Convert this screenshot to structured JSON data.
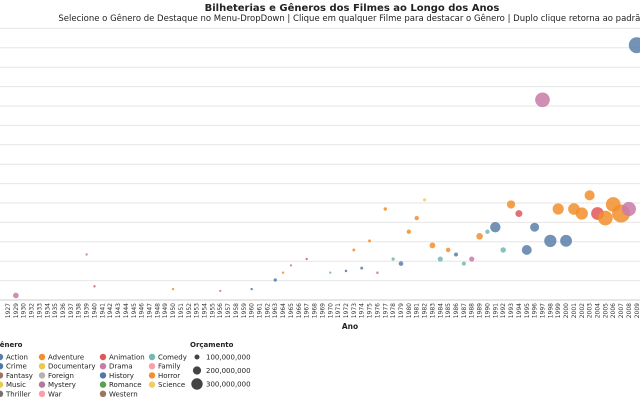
{
  "chart_data": {
    "type": "scatter",
    "title": "Bilheterias e Gêneros dos Filmes ao Longo dos Anos",
    "subtitle": "Selecione o Gênero de Destaque no Menu-DropDown | Clique em qualquer Filme para destacar o Gênero | Duplo clique retorna ao padrão",
    "xlabel": "Ano",
    "ylabel": "",
    "x_categories": [
      "1927",
      "1929",
      "1930",
      "1932",
      "1933",
      "1934",
      "1935",
      "1936",
      "1937",
      "1938",
      "1939",
      "1940",
      "1941",
      "1942",
      "1943",
      "1944",
      "1945",
      "1946",
      "1947",
      "1948",
      "1949",
      "1950",
      "1951",
      "1952",
      "1953",
      "1954",
      "1955",
      "1956",
      "1957",
      "1958",
      "1959",
      "1960",
      "1961",
      "1962",
      "1963",
      "1964",
      "1965",
      "1966",
      "1967",
      "1968",
      "1969",
      "1970",
      "1971",
      "1972",
      "1973",
      "1974",
      "1975",
      "1976",
      "1977",
      "1978",
      "1979",
      "1980",
      "1981",
      "1982",
      "1983",
      "1984",
      "1985",
      "1986",
      "1987",
      "1988",
      "1989",
      "1990",
      "1991",
      "1992",
      "1993",
      "1994",
      "1995",
      "1996",
      "1997",
      "1998",
      "1999",
      "2000",
      "2001",
      "2002",
      "2003",
      "2004",
      "2005",
      "2006",
      "2007",
      "2008",
      "2009"
    ],
    "grid": true,
    "legend": {
      "genre_title": "Gênero",
      "genres": [
        {
          "name": "Action",
          "color": "#5b7fa8"
        },
        {
          "name": "Adventure",
          "color": "#f28e2b"
        },
        {
          "name": "Animation",
          "color": "#e05759"
        },
        {
          "name": "Comedy",
          "color": "#76b7b2"
        },
        {
          "name": "Crime",
          "color": "#4e79a7"
        },
        {
          "name": "Documentary",
          "color": "#edc948"
        },
        {
          "name": "Drama",
          "color": "#c97aa8"
        },
        {
          "name": "Family",
          "color": "#ff9da7"
        },
        {
          "name": "Fantasy",
          "color": "#9c755f"
        },
        {
          "name": "Foreign",
          "color": "#bab0ac"
        },
        {
          "name": "History",
          "color": "#4e79a7"
        },
        {
          "name": "Horror",
          "color": "#f28e2b"
        },
        {
          "name": "Music",
          "color": "#edc948"
        },
        {
          "name": "Mystery",
          "color": "#b07aa1"
        },
        {
          "name": "Romance",
          "color": "#59a14f"
        },
        {
          "name": "Science",
          "color": "#f1ce63"
        },
        {
          "name": "Thriller",
          "color": "#79706e"
        },
        {
          "name": "War",
          "color": "#ff9da7"
        },
        {
          "name": "Western",
          "color": "#9c755f"
        }
      ],
      "size_title": "Orçamento",
      "sizes": [
        {
          "label": "100,000,000",
          "value": 100000000
        },
        {
          "label": "200,000,000",
          "value": 200000000
        },
        {
          "label": "300,000,000",
          "value": 300000000
        }
      ]
    },
    "points": [
      {
        "x": "1929",
        "y": 0.05,
        "genre": "Drama",
        "budget": 30000000
      },
      {
        "x": "1939",
        "y": 0.5,
        "genre": "Drama",
        "budget": 4000000
      },
      {
        "x": "1940",
        "y": 0.15,
        "genre": "Animation",
        "budget": 3000000
      },
      {
        "x": "1950",
        "y": 0.12,
        "genre": "Adventure",
        "budget": 3000000
      },
      {
        "x": "1956",
        "y": 0.1,
        "genre": "Drama",
        "budget": 5000000
      },
      {
        "x": "1960",
        "y": 0.12,
        "genre": "Crime",
        "budget": 4000000
      },
      {
        "x": "1963",
        "y": 0.22,
        "genre": "History",
        "budget": 10000000
      },
      {
        "x": "1964",
        "y": 0.3,
        "genre": "Adventure",
        "budget": 4000000
      },
      {
        "x": "1965",
        "y": 0.38,
        "genre": "Drama",
        "budget": 5000000
      },
      {
        "x": "1967",
        "y": 0.45,
        "genre": "Animation",
        "budget": 4000000
      },
      {
        "x": "1970",
        "y": 0.3,
        "genre": "Comedy",
        "budget": 5000000
      },
      {
        "x": "1972",
        "y": 0.32,
        "genre": "Crime",
        "budget": 6000000
      },
      {
        "x": "1973",
        "y": 0.55,
        "genre": "Horror",
        "budget": 8000000
      },
      {
        "x": "1974",
        "y": 0.35,
        "genre": "Action",
        "budget": 8000000
      },
      {
        "x": "1975",
        "y": 0.65,
        "genre": "Adventure",
        "budget": 8000000
      },
      {
        "x": "1976",
        "y": 0.3,
        "genre": "Drama",
        "budget": 6000000
      },
      {
        "x": "1977",
        "y": 1.0,
        "genre": "Adventure",
        "budget": 11000000
      },
      {
        "x": "1978",
        "y": 0.45,
        "genre": "Comedy",
        "budget": 10000000
      },
      {
        "x": "1979",
        "y": 0.4,
        "genre": "Action",
        "budget": 20000000
      },
      {
        "x": "1980",
        "y": 0.75,
        "genre": "Adventure",
        "budget": 18000000
      },
      {
        "x": "1981",
        "y": 0.9,
        "genre": "Adventure",
        "budget": 18000000
      },
      {
        "x": "1982",
        "y": 1.1,
        "genre": "Science",
        "budget": 10000000
      },
      {
        "x": "1983",
        "y": 0.6,
        "genre": "Adventure",
        "budget": 32000000
      },
      {
        "x": "1984",
        "y": 0.45,
        "genre": "Comedy",
        "budget": 25000000
      },
      {
        "x": "1985",
        "y": 0.55,
        "genre": "Adventure",
        "budget": 19000000
      },
      {
        "x": "1986",
        "y": 0.5,
        "genre": "Action",
        "budget": 15000000
      },
      {
        "x": "1987",
        "y": 0.4,
        "genre": "Comedy",
        "budget": 15000000
      },
      {
        "x": "1988",
        "y": 0.45,
        "genre": "Drama",
        "budget": 25000000
      },
      {
        "x": "1989",
        "y": 0.7,
        "genre": "Adventure",
        "budget": 40000000
      },
      {
        "x": "1990",
        "y": 0.75,
        "genre": "Comedy",
        "budget": 18000000
      },
      {
        "x": "1991",
        "y": 0.8,
        "genre": "Action",
        "budget": 100000000
      },
      {
        "x": "1992",
        "y": 0.55,
        "genre": "Comedy",
        "budget": 28000000
      },
      {
        "x": "1993",
        "y": 1.05,
        "genre": "Adventure",
        "budget": 63000000
      },
      {
        "x": "1994",
        "y": 0.95,
        "genre": "Animation",
        "budget": 45000000
      },
      {
        "x": "1995",
        "y": 0.55,
        "genre": "Action",
        "budget": 90000000
      },
      {
        "x": "1996",
        "y": 0.8,
        "genre": "Action",
        "budget": 75000000
      },
      {
        "x": "1997",
        "y": 2.2,
        "genre": "Drama",
        "budget": 200000000
      },
      {
        "x": "1998",
        "y": 0.65,
        "genre": "Action",
        "budget": 140000000
      },
      {
        "x": "1999",
        "y": 1.0,
        "genre": "Adventure",
        "budget": 115000000
      },
      {
        "x": "2000",
        "y": 0.65,
        "genre": "Action",
        "budget": 130000000
      },
      {
        "x": "2001",
        "y": 1.0,
        "genre": "Adventure",
        "budget": 125000000
      },
      {
        "x": "2002",
        "y": 0.95,
        "genre": "Adventure",
        "budget": 139000000
      },
      {
        "x": "2003",
        "y": 1.15,
        "genre": "Adventure",
        "budget": 94000000
      },
      {
        "x": "2004",
        "y": 0.95,
        "genre": "Animation",
        "budget": 150000000
      },
      {
        "x": "2005",
        "y": 0.9,
        "genre": "Adventure",
        "budget": 200000000
      },
      {
        "x": "2006",
        "y": 1.05,
        "genre": "Adventure",
        "budget": 200000000
      },
      {
        "x": "2007",
        "y": 0.95,
        "genre": "Adventure",
        "budget": 300000000
      },
      {
        "x": "2008",
        "y": 1.0,
        "genre": "Drama",
        "budget": 185000000
      },
      {
        "x": "2009",
        "y": 2.8,
        "genre": "Action",
        "budget": 237000000
      }
    ]
  }
}
